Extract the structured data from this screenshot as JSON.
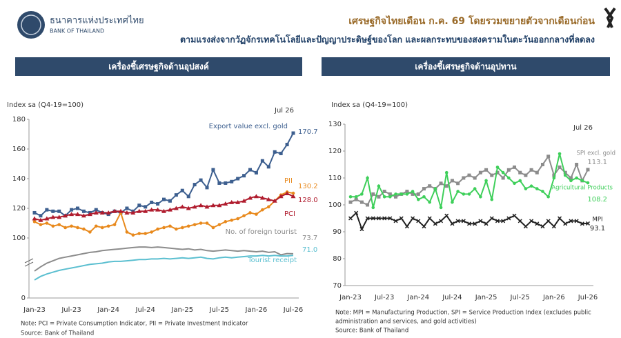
{
  "header": {
    "org_thai": "ธนาคารแห่งประเทศไทย",
    "org_en": "BANK OF THAILAND",
    "headline": "เศรษฐกิจไทยเดือน ก.ค. 69 โดยรวมขยายตัวจากเดือนก่อน",
    "subheadline": "ตามแรงส่งจากวัฏจักรเทคโนโลยีและปัญญาประดิษฐ์ของโลก และผลกระทบของสงครามในตะวันออกกลางที่ลดลง"
  },
  "chart_data": [
    {
      "type": "line",
      "title": "เครื่องชี้เศรษฐกิจด้านอุปสงค์",
      "y_label": "Index sa (Q4-19=100)",
      "annotation": "Jul 26",
      "categories": [
        "Jan-23",
        null,
        null,
        null,
        null,
        null,
        "Jul-23",
        null,
        null,
        null,
        null,
        null,
        "Jan-24",
        null,
        null,
        null,
        null,
        null,
        "Jul-24",
        null,
        null,
        null,
        null,
        null,
        "Jan-25",
        null,
        null,
        null,
        null,
        null,
        "Jul-25",
        null,
        null,
        null,
        null,
        null,
        "Jan-26",
        null,
        null,
        null,
        null,
        null,
        "Jul-26"
      ],
      "ylim": [
        0,
        180
      ],
      "yticks": [
        0,
        100,
        120,
        140,
        160,
        180
      ],
      "axis_break": true,
      "grid": false,
      "series": [
        {
          "name": "Export value excl. gold",
          "color": "#3d5f8f",
          "marker": "square",
          "values": [
            117,
            115,
            119,
            118,
            118,
            115,
            119,
            120,
            118,
            117,
            119,
            117,
            116,
            118,
            117,
            120,
            118,
            122,
            121,
            124,
            123,
            126,
            125,
            129,
            132,
            128,
            136,
            139,
            134,
            146,
            137,
            137,
            138,
            140,
            142,
            146,
            144,
            152,
            148,
            158,
            157,
            163,
            170.7
          ]
        },
        {
          "name": "PII",
          "color": "#e8891c",
          "marker": "circle",
          "values": [
            111,
            109,
            110,
            108,
            109,
            107,
            108,
            107,
            106,
            104,
            108,
            107,
            108,
            109,
            117,
            104,
            102,
            103,
            103,
            104,
            106,
            107,
            108,
            106,
            107,
            108,
            109,
            110,
            110,
            107,
            109,
            111,
            112,
            113,
            115,
            117,
            116,
            119,
            121,
            125,
            129,
            131,
            130.2
          ]
        },
        {
          "name": "PCI",
          "color": "#b01c2e",
          "marker": "triangle",
          "values": [
            113,
            112,
            113,
            114,
            114,
            115,
            116,
            116,
            115,
            116,
            117,
            117,
            117,
            118,
            118,
            117,
            117,
            118,
            118,
            119,
            119,
            118,
            119,
            120,
            121,
            120,
            121,
            122,
            121,
            122,
            122,
            123,
            124,
            124,
            125,
            127,
            128,
            127,
            126,
            125,
            128,
            130,
            128.0
          ],
          "value_labels": [
            null,
            null,
            null,
            null,
            null,
            null,
            null,
            null,
            null,
            null,
            null,
            null,
            null,
            null,
            null,
            null,
            null,
            null,
            null,
            null,
            null,
            null,
            null,
            null,
            null,
            null,
            null,
            null,
            null,
            null,
            null,
            null,
            null,
            null,
            null,
            null,
            null,
            null,
            null,
            null,
            null,
            null,
            "128.0"
          ]
        },
        {
          "name": "No. of foreign tourist",
          "color": "#8c8c8c",
          "marker": "none",
          "values": [
            45,
            52,
            58,
            62,
            66,
            68,
            70,
            72,
            74,
            76,
            77,
            79,
            80,
            81,
            82,
            83,
            84,
            85,
            85,
            84,
            85,
            84,
            83,
            82,
            81,
            82,
            80,
            81,
            79,
            78,
            79,
            80,
            79,
            78,
            79,
            78,
            77,
            78,
            76,
            77,
            72,
            74,
            73.7
          ]
        },
        {
          "name": "Tourist receipt",
          "color": "#5bbfd0",
          "marker": "none",
          "values": [
            30,
            36,
            40,
            43,
            46,
            48,
            50,
            52,
            54,
            56,
            57,
            58,
            60,
            61,
            61,
            62,
            63,
            64,
            64,
            65,
            65,
            66,
            65,
            66,
            67,
            66,
            67,
            68,
            66,
            65,
            67,
            68,
            67,
            68,
            69,
            70,
            70,
            71,
            70,
            71,
            70,
            70,
            71.0
          ],
          "value_labels": [
            null,
            null,
            null,
            null,
            null,
            null,
            null,
            null,
            null,
            null,
            null,
            null,
            null,
            null,
            null,
            null,
            null,
            null,
            null,
            null,
            null,
            null,
            null,
            null,
            null,
            null,
            null,
            null,
            null,
            null,
            null,
            null,
            null,
            null,
            null,
            null,
            null,
            null,
            null,
            null,
            null,
            null,
            "71.0"
          ]
        }
      ]
    },
    {
      "type": "line",
      "title": "เครื่องชี้เศรษฐกิจด้านอุปทาน",
      "y_label": "Index sa (Q4-19=100)",
      "annotation": "Jul 26",
      "categories": [
        "Jan-23",
        null,
        null,
        null,
        null,
        null,
        "Jul-23",
        null,
        null,
        null,
        null,
        null,
        "Jan-24",
        null,
        null,
        null,
        null,
        null,
        "Jul-24",
        null,
        null,
        null,
        null,
        null,
        "Jan-25",
        null,
        null,
        null,
        null,
        null,
        "Jul-25",
        null,
        null,
        null,
        null,
        null,
        "Jan-26",
        null,
        null,
        null,
        null,
        null,
        "Jul-26"
      ],
      "ylim": [
        70,
        130
      ],
      "yticks": [
        70,
        80,
        90,
        100,
        110,
        120,
        130
      ],
      "axis_break": false,
      "grid": false,
      "series": [
        {
          "name": "SPI excl. gold",
          "color": "#8c8c8c",
          "marker": "square",
          "values": [
            101,
            102,
            101,
            100,
            104,
            103,
            105,
            104,
            103,
            104,
            105,
            104,
            104,
            106,
            107,
            106,
            108,
            107,
            109,
            108,
            110,
            111,
            110,
            112,
            113,
            111,
            112,
            110,
            113,
            114,
            112,
            111,
            113,
            112,
            115,
            118,
            111,
            114,
            112,
            110,
            115,
            109,
            113.1
          ]
        },
        {
          "name": "Agricultural Products",
          "color": "#3ecf5a",
          "marker": "circle",
          "values": [
            103,
            103,
            104,
            110,
            99,
            107,
            103,
            103,
            104,
            104,
            104,
            105,
            102,
            103,
            101,
            106,
            99,
            112,
            101,
            105,
            104,
            104,
            106,
            103,
            109,
            102,
            114,
            112,
            110,
            108,
            109,
            106,
            107,
            106,
            105,
            103,
            110,
            119,
            111,
            109,
            110,
            109,
            108.2
          ]
        },
        {
          "name": "MPI",
          "color": "#222222",
          "marker": "cross",
          "values": [
            95,
            97,
            91,
            95,
            95,
            95,
            95,
            95,
            94,
            95,
            92,
            95,
            94,
            92,
            95,
            93,
            94,
            96,
            93,
            94,
            94,
            93,
            93,
            94,
            93,
            95,
            94,
            94,
            95,
            96,
            94,
            92,
            94,
            93,
            92,
            94,
            92,
            95,
            93,
            94,
            94,
            93,
            93.1
          ]
        }
      ]
    }
  ],
  "notes": [
    {
      "note": "Note: PCI = Private Consumption Indicator, PII = Private Investment Indicator",
      "source": "Source: Bank of Thailand"
    },
    {
      "note": "Note: MPI = Manufacturing Production, SPI = Service Production Index (excludes public",
      "note_cont": "administration and services, and gold activities)",
      "source": "Source: Bank of Thailand"
    }
  ]
}
